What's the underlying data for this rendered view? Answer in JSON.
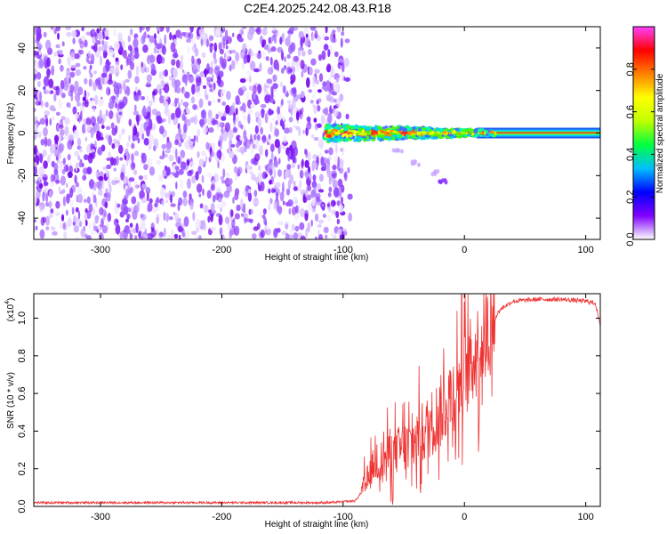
{
  "title": "C2E4.2025.242.08.43.R18",
  "chart_data": [
    {
      "type": "heatmap",
      "name": "spectrogram",
      "xlabel": "Height of straight line (km)",
      "ylabel": "Frequency (Hz)",
      "xlim": [
        -355,
        112
      ],
      "ylim": [
        -50,
        50
      ],
      "xticks": [
        -300,
        -200,
        -100,
        0,
        100
      ],
      "yticks": [
        -40,
        -20,
        0,
        20,
        40
      ],
      "noise_region_x": [
        -355,
        -100
      ],
      "signal_line_frequency": 0,
      "signal_band_x": [
        -115,
        112
      ],
      "curved_branch": [
        [
          -55,
          -8
        ],
        [
          -40,
          -14
        ],
        [
          -25,
          -19
        ],
        [
          -17,
          -23
        ]
      ],
      "colorbar": {
        "label": "Normalized spectral amplitude",
        "range": [
          0.0,
          1.0
        ],
        "ticks": [
          0.0,
          0.2,
          0.4,
          0.6,
          0.8
        ],
        "colors": [
          "#ffffff",
          "#8000ff",
          "#0000ff",
          "#00c0ff",
          "#00ff40",
          "#c0ff00",
          "#ffff00",
          "#ff8000",
          "#ff0000",
          "#ff40ff"
        ]
      }
    },
    {
      "type": "line",
      "name": "snr",
      "xlabel": "Height of straight line (km)",
      "ylabel": "SNR (10 * v/v)",
      "multiplier_label": "(x10",
      "multiplier_exp": "4",
      "xlim": [
        -355,
        112
      ],
      "ylim": [
        0,
        1.13
      ],
      "xticks": [
        -300,
        -200,
        -100,
        0,
        100
      ],
      "yticks": [
        "0.0",
        "0.2",
        "0.4",
        "0.6",
        "0.8",
        "1.0"
      ],
      "color": "#ee3333",
      "x": [
        -355,
        -300,
        -200,
        -110,
        -90,
        -82,
        -75,
        -60,
        -45,
        -30,
        -20,
        -10,
        0,
        10,
        20,
        30,
        40,
        60,
        80,
        100,
        108,
        112
      ],
      "y": [
        0.02,
        0.02,
        0.02,
        0.02,
        0.03,
        0.1,
        0.22,
        0.28,
        0.33,
        0.42,
        0.5,
        0.6,
        0.7,
        0.82,
        0.95,
        1.05,
        1.09,
        1.1,
        1.1,
        1.09,
        1.08,
        0.95
      ]
    }
  ]
}
